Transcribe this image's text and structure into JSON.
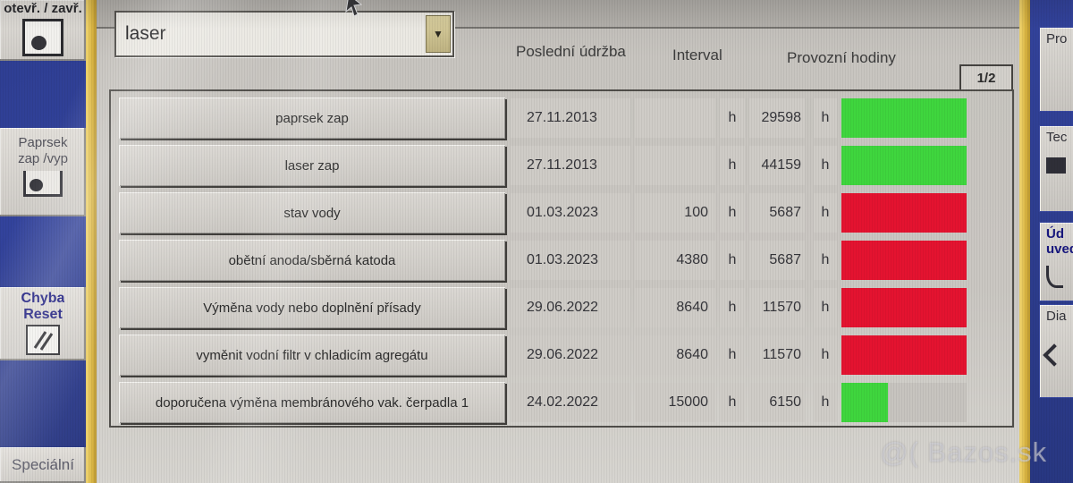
{
  "left_sidebar": {
    "open_close_button": {
      "label": "otevř. / zavř."
    },
    "beam_button": {
      "label_line1": "Paprsek",
      "label_line2": "zap /vyp"
    },
    "error_reset_button": {
      "label_line1": "Chyba",
      "label_line2": "Reset"
    },
    "special_button": {
      "label": "Speciální"
    }
  },
  "toolbar": {
    "machine_select": {
      "value": "laser"
    }
  },
  "table": {
    "page_indicator": "1/2",
    "columns": {
      "last_maintenance": "Poslední údržba",
      "interval": "Interval",
      "operating_hours": "Provozní hodiny"
    },
    "unit": "h",
    "rows": [
      {
        "task": "paprsek zap",
        "last_maintenance": "27.11.2013",
        "interval": "",
        "hours": "29598",
        "status": "ok",
        "bar_percent": 100
      },
      {
        "task": "laser zap",
        "last_maintenance": "27.11.2013",
        "interval": "",
        "hours": "44159",
        "status": "ok",
        "bar_percent": 100
      },
      {
        "task": "stav vody",
        "last_maintenance": "01.03.2023",
        "interval": "100",
        "hours": "5687",
        "status": "due",
        "bar_percent": 100
      },
      {
        "task": "obětní anoda/sběrná katoda",
        "last_maintenance": "01.03.2023",
        "interval": "4380",
        "hours": "5687",
        "status": "due",
        "bar_percent": 100
      },
      {
        "task": "Výměna vody nebo doplnění přísady",
        "last_maintenance": "29.06.2022",
        "interval": "8640",
        "hours": "11570",
        "status": "due",
        "bar_percent": 100
      },
      {
        "task": "vyměnit vodní filtr v chladicím agregátu",
        "last_maintenance": "29.06.2022",
        "interval": "8640",
        "hours": "11570",
        "status": "due",
        "bar_percent": 100
      },
      {
        "task": "doporučena výměna membránového vak. čerpadla 1",
        "last_maintenance": "24.02.2022",
        "interval": "15000",
        "hours": "6150",
        "status": "ok",
        "bar_percent": 37
      }
    ]
  },
  "right_sidebar": {
    "buttons": [
      {
        "label": "Pro"
      },
      {
        "label": "Tec"
      },
      {
        "label": "Úd",
        "label2": "uved"
      },
      {
        "label": "Dia"
      }
    ]
  },
  "watermark": "@( Bazos.sk",
  "colors": {
    "status_ok": "#3fd63e",
    "status_due": "#e41330",
    "sidebar_blue": "#2e3f94",
    "accent_yellow": "#d9b441"
  }
}
